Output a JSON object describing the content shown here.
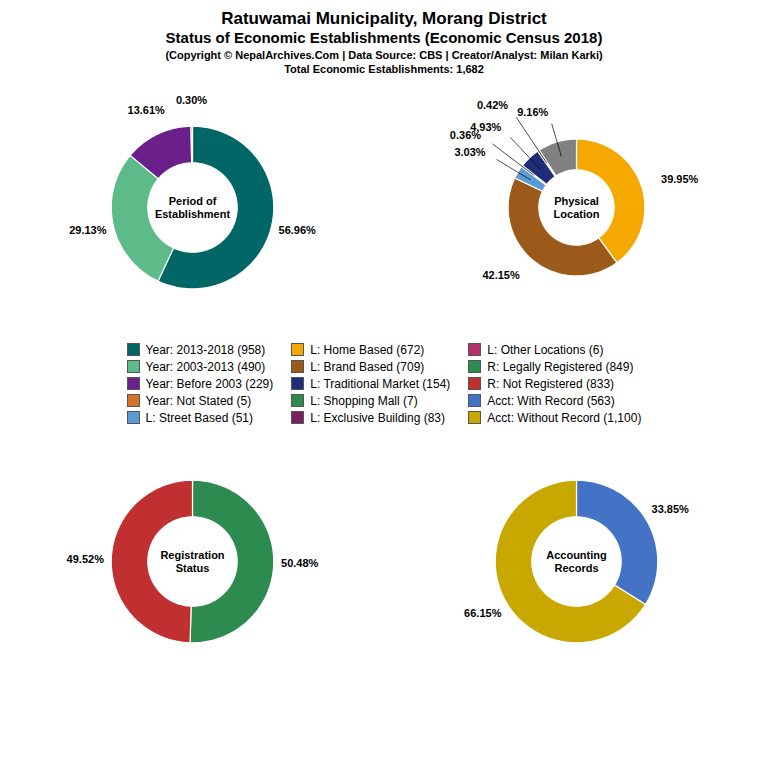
{
  "title": "Ratuwamai Municipality, Morang District\nStatus of Economic Establishments (Economic Census 2018)",
  "subtitle": "(Copyright © NepalArchives.Com | Data Source: CBS | Creator/Analyst: Milan Karki)\nTotal Economic Establishments: 1,682",
  "chart_data": [
    {
      "type": "pie",
      "title": "Period of\nEstablishment",
      "values": [
        56.96,
        29.13,
        13.61,
        0.3
      ],
      "colors": [
        "#006666",
        "#5DBB8A",
        "#6A1F8A",
        "#D4722A"
      ],
      "data_labels": true,
      "value_labels": [
        "56.96%",
        "29.13%",
        "13.61%",
        "0.30%"
      ]
    },
    {
      "type": "pie",
      "title": "Physical\nLocation",
      "values": [
        39.95,
        42.15,
        3.03,
        0.36,
        4.93,
        0.42,
        9.16
      ],
      "colors": [
        "#F5A800",
        "#9C5A1A",
        "#5B9BD5",
        "#7B1F5E",
        "#1F2D7B",
        "#B5306A",
        "#808080"
      ],
      "data_labels": true,
      "value_labels": [
        "39.95%",
        "42.15%",
        "3.03%",
        "0.36%",
        "4.93%",
        "0.42%",
        "9.16%"
      ]
    },
    {
      "type": "pie",
      "title": "Registration\nStatus",
      "values": [
        50.48,
        49.52
      ],
      "colors": [
        "#2E8B50",
        "#C03030"
      ],
      "data_labels": true,
      "value_labels": [
        "50.48%",
        "49.52%"
      ]
    },
    {
      "type": "pie",
      "title": "Accounting\nRecords",
      "values": [
        33.85,
        66.15
      ],
      "colors": [
        "#4472C4",
        "#C8A800"
      ],
      "data_labels": true,
      "value_labels": [
        "33.85%",
        "66.15%"
      ]
    }
  ],
  "legend_items": [
    {
      "label": "Year: 2013-2018 (958)",
      "color": "#006666"
    },
    {
      "label": "Year: 2003-2013 (490)",
      "color": "#5DBB8A"
    },
    {
      "label": "Year: Before 2003 (229)",
      "color": "#6A1F8A"
    },
    {
      "label": "Year: Not Stated (5)",
      "color": "#D4722A"
    },
    {
      "label": "L: Street Based (51)",
      "color": "#5B9BD5"
    },
    {
      "label": "L: Home Based (672)",
      "color": "#F5A800"
    },
    {
      "label": "L: Brand Based (709)",
      "color": "#9C5A1A"
    },
    {
      "label": "L: Traditional Market (154)",
      "color": "#1F2D7B"
    },
    {
      "label": "L: Shopping Mall (7)",
      "color": "#2E8B50"
    },
    {
      "label": "L: Exclusive Building (83)",
      "color": "#7B1F5E"
    },
    {
      "label": "L: Other Locations (6)",
      "color": "#B5306A"
    },
    {
      "label": "R: Legally Registered (849)",
      "color": "#2E8B50"
    },
    {
      "label": "R: Not Registered (833)",
      "color": "#C03030"
    },
    {
      "label": "Acct: With Record (563)",
      "color": "#4472C4"
    },
    {
      "label": "Acct: Without Record (1,100)",
      "color": "#C8A800"
    }
  ]
}
